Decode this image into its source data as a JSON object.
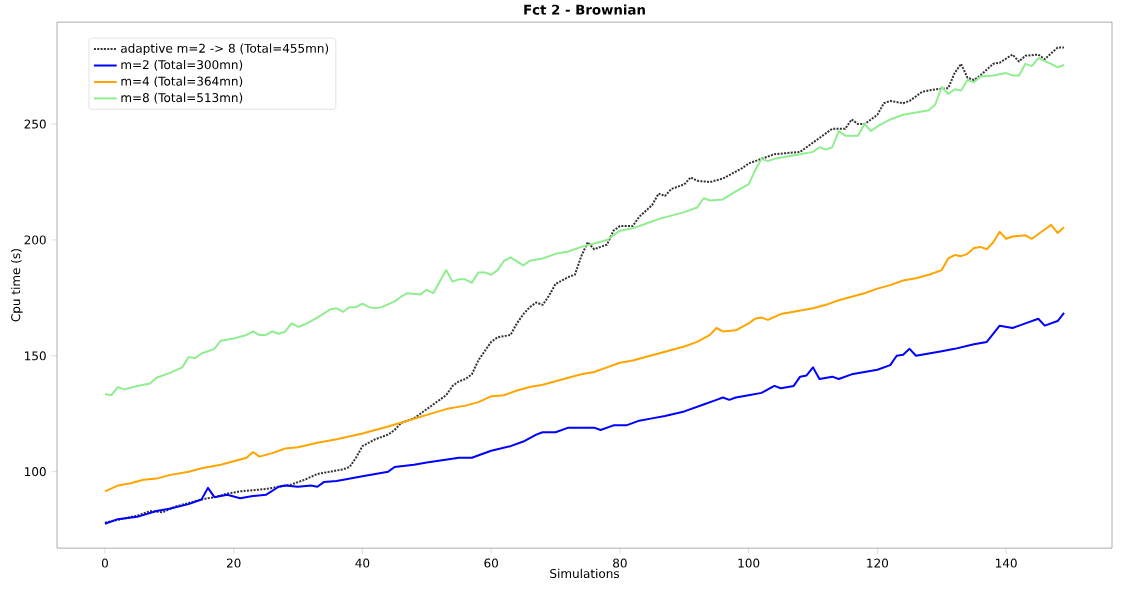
{
  "chart_data": {
    "type": "line",
    "title": "Fct 2 - Brownian",
    "xlabel": "Simulations",
    "ylabel": "Cpu time (s)",
    "xlim": [
      -7.45,
      156.45
    ],
    "ylim": [
      67,
      294
    ],
    "xticks": [
      0,
      20,
      40,
      60,
      80,
      100,
      120,
      140
    ],
    "yticks": [
      100,
      150,
      200,
      250
    ],
    "grid": false,
    "legend": "top left",
    "series": [
      {
        "name": "adaptive m=2 -> 8 (Total=455mn)",
        "color": "#333333",
        "line_style": "dotted",
        "x": [
          0,
          5,
          7,
          9,
          11,
          13,
          15,
          17,
          19,
          21,
          23,
          25,
          27,
          29,
          31,
          33,
          35,
          37,
          38,
          39,
          40,
          42,
          44,
          45,
          46,
          48,
          50,
          52,
          53,
          54,
          55,
          56,
          57,
          58,
          59,
          60,
          61,
          63,
          64,
          65,
          66,
          67,
          68,
          69,
          70,
          72,
          73,
          74,
          75,
          76,
          77,
          78,
          79,
          80,
          82,
          83,
          85,
          86,
          87,
          88,
          90,
          91,
          92,
          94,
          96,
          97,
          99,
          100,
          102,
          104,
          106,
          108,
          110,
          112,
          113,
          115,
          116,
          117,
          118,
          120,
          121,
          122,
          124,
          125,
          127,
          129,
          131,
          132,
          133,
          134,
          135,
          136,
          138,
          139,
          141,
          142,
          143,
          145,
          146,
          147,
          148,
          149
        ],
        "values": [
          78,
          81,
          83,
          82.5,
          85,
          86.5,
          88,
          89,
          90.5,
          91.5,
          92,
          92.5,
          93.5,
          94.5,
          96.5,
          99,
          100,
          101,
          102,
          106,
          111,
          114,
          116,
          118,
          121,
          123,
          127,
          131,
          133,
          137,
          139,
          140,
          142,
          148,
          152,
          156,
          158,
          159,
          164,
          168,
          171,
          173,
          172,
          176,
          181,
          184,
          185,
          193,
          199,
          196,
          197,
          198,
          204,
          206,
          206,
          210,
          215,
          220,
          219,
          222,
          224,
          227,
          225.5,
          225,
          226.5,
          228,
          231,
          233,
          235,
          237,
          237.5,
          238,
          242,
          246,
          248,
          248,
          252,
          250,
          250,
          254,
          259,
          260,
          259,
          260,
          264,
          265,
          265.5,
          272,
          276,
          270,
          269,
          271,
          276,
          276.5,
          280,
          277,
          279.5,
          280,
          278,
          280.5,
          283,
          283
        ]
      },
      {
        "name": "m=2 (Total=300mn)",
        "color": "#0000ff",
        "line_style": "solid",
        "x": [
          0,
          2,
          5,
          8,
          10,
          13,
          15,
          16,
          17,
          19,
          21,
          23,
          25,
          27,
          28,
          30,
          32,
          33,
          34,
          36,
          40,
          44,
          45,
          48,
          50,
          55,
          57,
          60,
          63,
          65,
          67,
          68,
          70,
          72,
          74,
          76,
          77,
          79,
          81,
          83,
          85,
          87,
          90,
          93,
          95,
          96,
          97,
          98,
          100,
          102,
          104,
          105,
          107,
          108,
          109,
          110,
          111,
          113,
          114,
          116,
          118,
          120,
          122,
          123,
          124,
          125,
          126,
          128,
          130,
          132,
          135,
          137,
          139,
          141,
          143,
          145,
          146,
          148,
          149
        ],
        "values": [
          77.5,
          79.5,
          80.5,
          83,
          84,
          86,
          88,
          93,
          89,
          90,
          88.5,
          89.5,
          90,
          93.5,
          94,
          93.5,
          94,
          93.5,
          95.5,
          96,
          98,
          100,
          102,
          103,
          104,
          106,
          106,
          109,
          111,
          113,
          116,
          117,
          117,
          119,
          119,
          119,
          118,
          120,
          120,
          122,
          123,
          124,
          126,
          129,
          131,
          132,
          131,
          132,
          133,
          134,
          137,
          136,
          137,
          141,
          141.5,
          145,
          140,
          141,
          140,
          142,
          143,
          144,
          146,
          150,
          150.5,
          153,
          150,
          151,
          152,
          153,
          155,
          156,
          163,
          162,
          164,
          166,
          163,
          165,
          168.5
        ]
      },
      {
        "name": "m=4 (Total=364mn)",
        "color": "#ffa500",
        "line_style": "solid",
        "x": [
          0,
          2,
          4,
          6,
          8,
          10,
          13,
          15,
          18,
          20,
          22,
          23,
          24,
          26,
          28,
          30,
          33,
          36,
          40,
          44,
          47,
          50,
          53,
          56,
          58,
          60,
          62,
          64,
          66,
          68,
          70,
          72,
          74,
          76,
          78,
          80,
          82,
          84,
          86,
          88,
          90,
          92,
          94,
          95,
          96,
          98,
          100,
          101,
          102,
          103,
          105,
          107,
          110,
          112,
          114,
          116,
          118,
          120,
          122,
          124,
          126,
          128,
          130,
          131,
          132,
          133,
          134,
          135,
          136,
          137,
          138,
          139,
          140,
          141,
          143,
          144,
          146,
          147,
          148,
          149
        ],
        "values": [
          91.5,
          94,
          95,
          96.5,
          97,
          98.5,
          100,
          101.5,
          103,
          104.5,
          106,
          108.5,
          106.5,
          108,
          110,
          110.5,
          112.5,
          114,
          116.5,
          119.5,
          122,
          124.5,
          127,
          128.5,
          130,
          132.5,
          133,
          135,
          136.5,
          137.5,
          139,
          140.5,
          142,
          143,
          145,
          147,
          148,
          149.5,
          151,
          152.5,
          154,
          156,
          159,
          162,
          160.5,
          161,
          164,
          166,
          166.5,
          165.5,
          168,
          169,
          170.5,
          172,
          174,
          175.5,
          177,
          179,
          180.5,
          182.5,
          183.5,
          185,
          187,
          192,
          193.5,
          193,
          194,
          196.5,
          197,
          196,
          199,
          203.5,
          200.5,
          201.5,
          202,
          200.5,
          204.5,
          206.5,
          203,
          205.5
        ]
      },
      {
        "name": "m=8 (Total=513mn)",
        "color": "#90ee90",
        "line_style": "solid",
        "x": [
          0,
          1,
          2,
          3,
          5,
          7,
          8,
          10,
          12,
          13,
          14,
          15,
          17,
          18,
          20,
          22,
          23,
          24,
          25,
          26,
          27,
          28,
          29,
          30,
          31,
          33,
          35,
          36,
          37,
          38,
          39,
          40,
          41,
          42,
          43,
          45,
          46,
          47,
          49,
          50,
          51,
          52,
          53,
          54,
          55,
          56,
          57,
          58,
          59,
          60,
          61,
          62,
          63,
          65,
          66,
          68,
          70,
          72,
          74,
          76,
          78,
          80,
          82,
          84,
          86,
          88,
          90,
          92,
          93,
          94,
          96,
          98,
          100,
          101,
          102,
          103,
          104,
          106,
          108,
          110,
          111,
          112,
          113,
          114,
          115,
          117,
          118,
          119,
          120,
          122,
          124,
          126,
          128,
          129,
          130,
          131,
          132,
          133,
          134,
          135,
          136,
          138,
          139,
          140,
          141,
          142,
          143,
          144,
          145,
          147,
          148,
          149
        ],
        "values": [
          133.5,
          133,
          136.5,
          135.5,
          137,
          138,
          140.5,
          142.5,
          145,
          149.5,
          149,
          151,
          153,
          156.5,
          157.5,
          159,
          160.5,
          159,
          159,
          160.5,
          159.5,
          160.5,
          164,
          162.5,
          163.5,
          166.5,
          170,
          170.5,
          169,
          171,
          171,
          172.5,
          171,
          170.5,
          171,
          173.5,
          175.5,
          177,
          176.5,
          178.5,
          177,
          182,
          187,
          182,
          183,
          183,
          181.5,
          186,
          186,
          185,
          187,
          191,
          192.5,
          189,
          191,
          192,
          194,
          195,
          197,
          198.5,
          200,
          204,
          205,
          207,
          209,
          210.5,
          212,
          214,
          218,
          217,
          217.5,
          221,
          224,
          230,
          235,
          234,
          235,
          236,
          237,
          238,
          240,
          239,
          240,
          247,
          245,
          245,
          250,
          247,
          249,
          252,
          254,
          255,
          256,
          258.5,
          266,
          263,
          265,
          264.5,
          269,
          268,
          270.5,
          271,
          271.5,
          272,
          271,
          271,
          276,
          275,
          278.5,
          276,
          274.5,
          275.5
        ]
      }
    ]
  }
}
